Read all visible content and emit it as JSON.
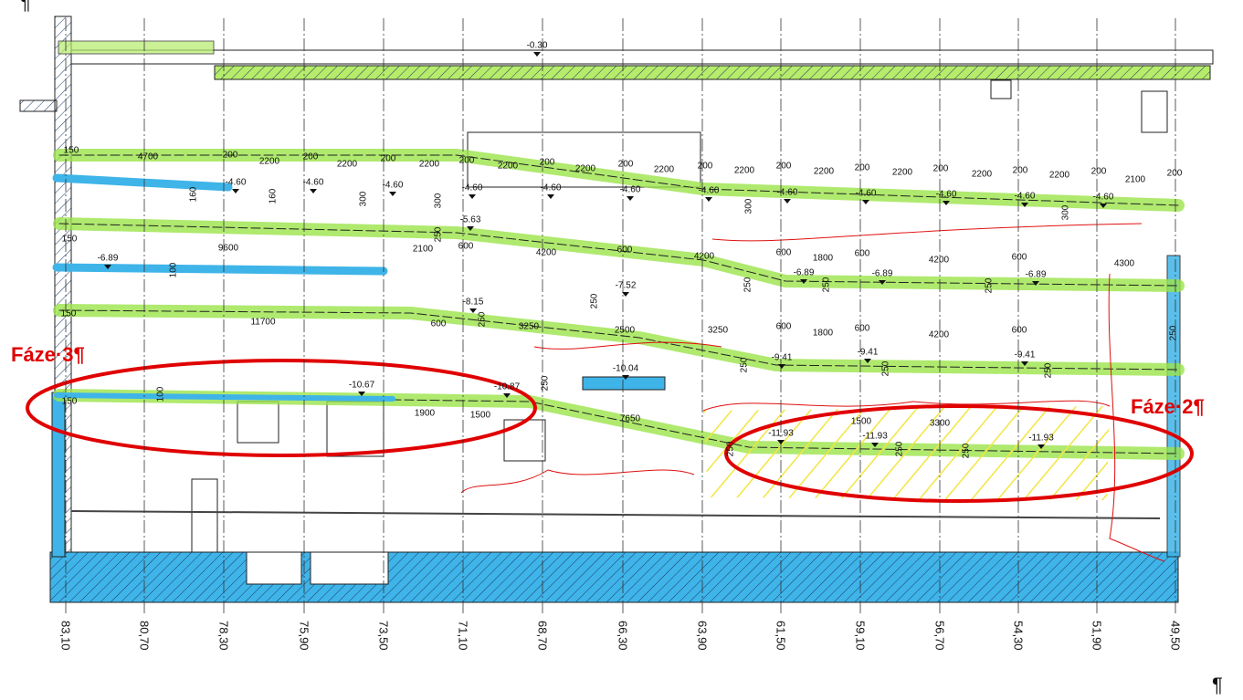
{
  "pilcrows": [
    "¶",
    "¶"
  ],
  "phase_labels": [
    "Fáze·3¶",
    "Fáze·2¶"
  ],
  "stations": [
    "83,10",
    "80,70",
    "78,30",
    "75,90",
    "73,50",
    "71,10",
    "68,70",
    "66,30",
    "63,90",
    "61,50",
    "59,10",
    "56,70",
    "54,30",
    "51,90",
    "49,50"
  ],
  "levels": [
    "-0.30",
    "-4.60",
    "-4.60",
    "-4.60",
    "-4.60",
    "-4.60",
    "-4.60",
    "-4.60",
    "-4.60",
    "-4.60",
    "-4.60",
    "-4.60",
    "-4.60",
    "-5.63",
    "-6.89",
    "-6.89",
    "-6.89",
    "-6.89",
    "-7.52",
    "-8.15",
    "-9.41",
    "-9.41",
    "-9.41",
    "-10.04",
    "-10.67",
    "-10.87",
    "-11.93",
    "-11.93",
    "-11.93"
  ],
  "dimensions": [
    "150",
    "4700",
    "200",
    "2200",
    "200",
    "2200",
    "200",
    "2200",
    "200",
    "2200",
    "200",
    "2200",
    "200",
    "2200",
    "200",
    "2200",
    "200",
    "2200",
    "200",
    "2200",
    "200",
    "2200",
    "200",
    "2200",
    "200",
    "2100",
    "200",
    "160",
    "160",
    "300",
    "300",
    "300",
    "300",
    "150",
    "9600",
    "2100",
    "600",
    "4200",
    "600",
    "4200",
    "600",
    "1800",
    "600",
    "4200",
    "600",
    "4300",
    "250",
    "100",
    "250",
    "250",
    "250",
    "250",
    "150",
    "11700",
    "600",
    "3250",
    "2500",
    "3250",
    "600",
    "1800",
    "600",
    "4200",
    "600",
    "250",
    "250",
    "250",
    "250",
    "250",
    "250",
    "100",
    "150",
    "1900",
    "1500",
    "7650",
    "1500",
    "3300",
    "250",
    "250",
    "250"
  ]
}
